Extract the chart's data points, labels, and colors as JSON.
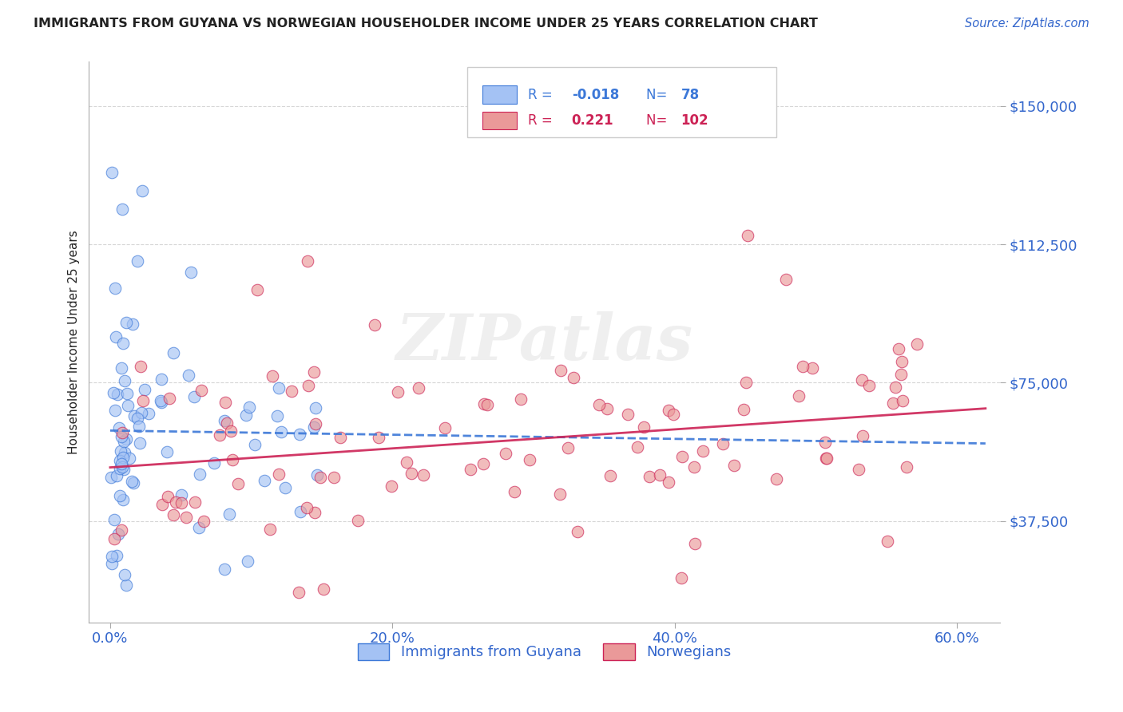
{
  "title": "IMMIGRANTS FROM GUYANA VS NORWEGIAN HOUSEHOLDER INCOME UNDER 25 YEARS CORRELATION CHART",
  "source_text": "Source: ZipAtlas.com",
  "xlabel_ticks": [
    "0.0%",
    "20.0%",
    "40.0%",
    "60.0%"
  ],
  "xlabel_vals": [
    0.0,
    20.0,
    40.0,
    60.0
  ],
  "ylabel_ticks": [
    37500,
    75000,
    112500,
    150000
  ],
  "ylabel_labels": [
    "$37,500",
    "$75,000",
    "$112,500",
    "$150,000"
  ],
  "xlim": [
    -1.5,
    63
  ],
  "ylim": [
    10000,
    162000
  ],
  "ylabel": "Householder Income Under 25 years",
  "legend1_label": "Immigrants from Guyana",
  "legend2_label": "Norwegians",
  "R1": "-0.018",
  "N1": "78",
  "R2": "0.221",
  "N2": "102",
  "blue_color": "#a4c2f4",
  "pink_color": "#ea9999",
  "blue_line_color": "#3c78d8",
  "pink_line_color": "#cc2255",
  "watermark": "ZIPatlas",
  "title_color": "#222222",
  "source_color": "#3366cc",
  "axis_label_color": "#222222",
  "tick_color": "#3366cc",
  "grid_color": "#cccccc"
}
